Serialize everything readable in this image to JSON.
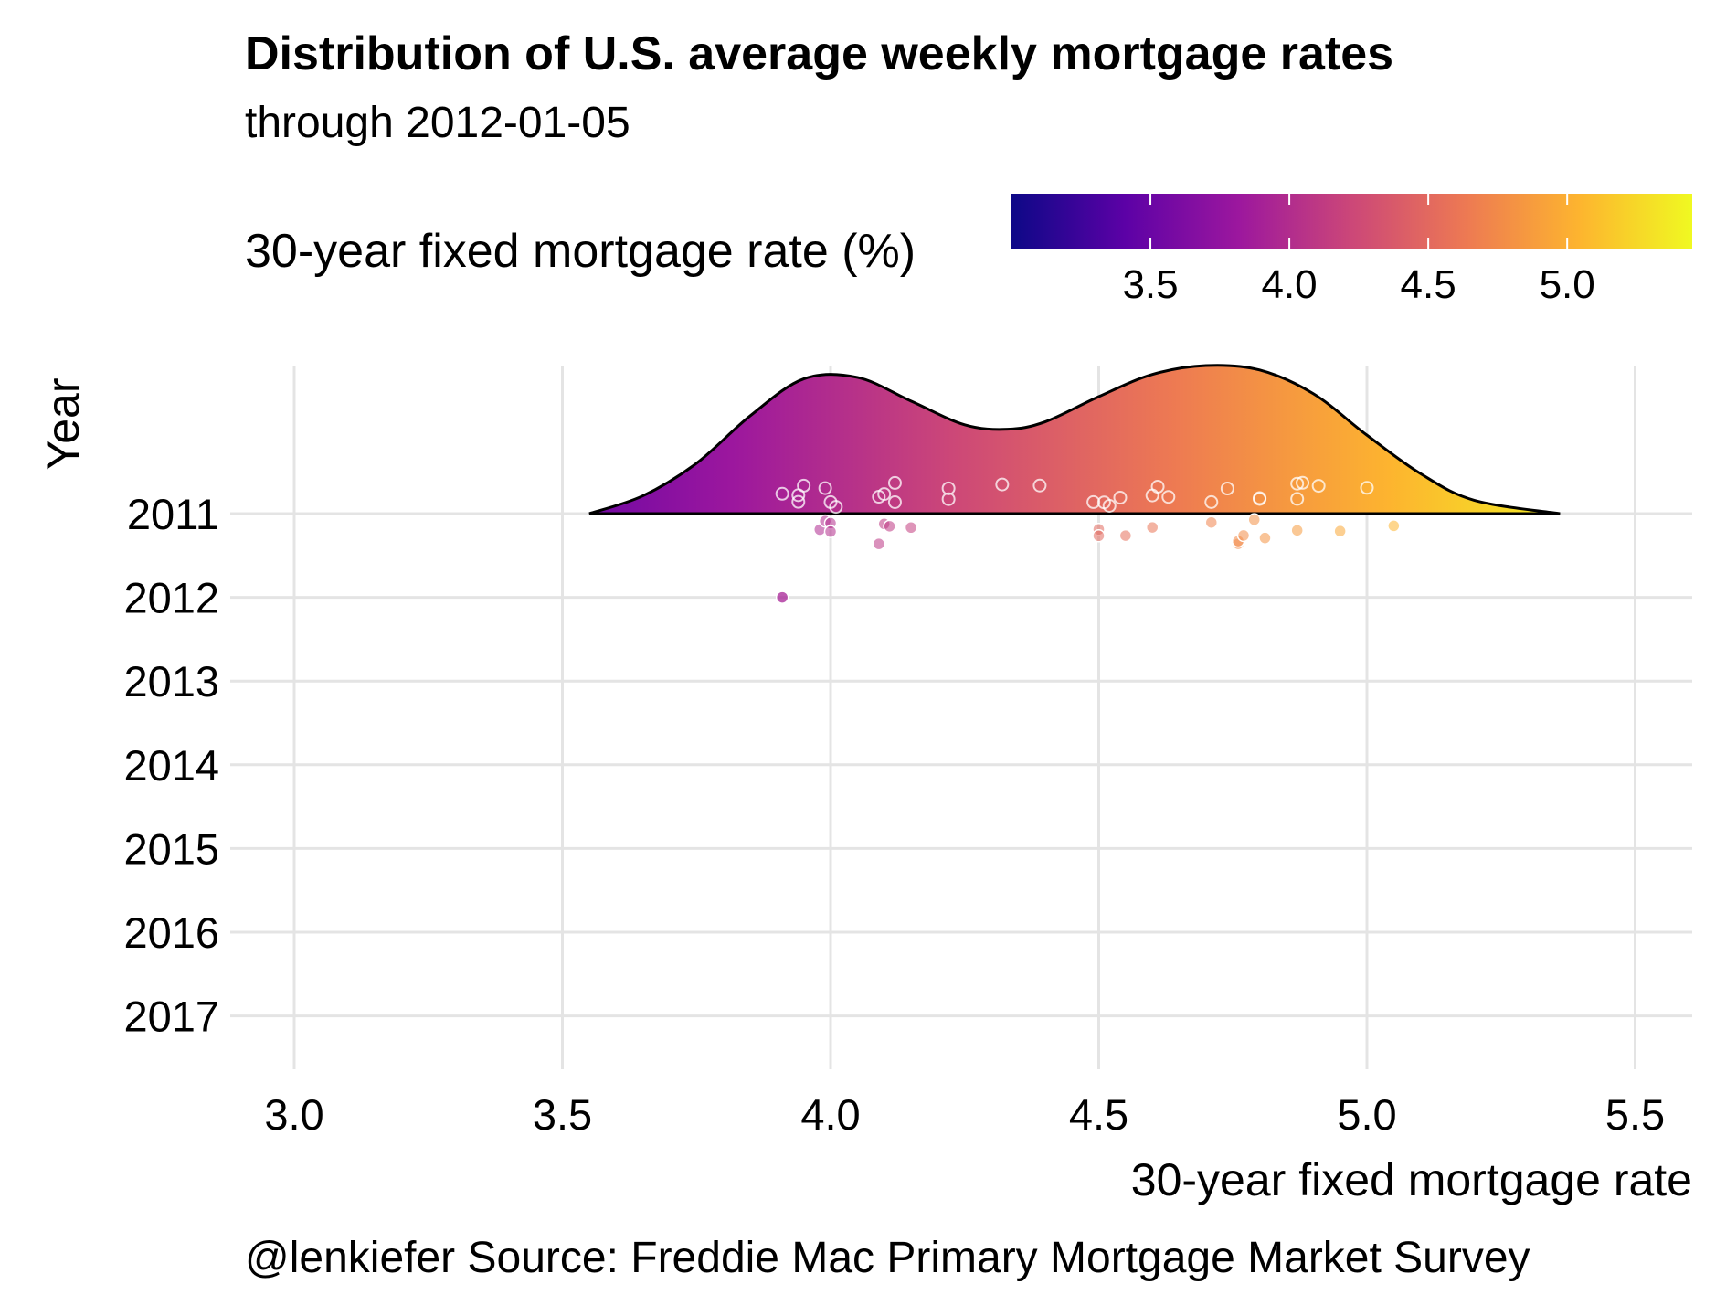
{
  "chart_data": {
    "type": "ridgeline",
    "title": "Distribution of U.S. average weekly mortgage rates",
    "subtitle": "through  2012-01-05",
    "xlabel": "30-year fixed mortgage rate",
    "ylabel": "Year",
    "caption": "@lenkiefer Source: Freddie Mac Primary Mortgage Market Survey",
    "legend": {
      "title": "30-year fixed mortgage rate (%)",
      "position": "top-right",
      "min": 3.0,
      "max": 5.45,
      "ticks": [
        3.5,
        4.0,
        4.5,
        5.0
      ],
      "tick_labels": [
        "3.5",
        "4.0",
        "4.5",
        "5.0"
      ],
      "palette": [
        "#0d0887",
        "#5c01a6",
        "#9c179e",
        "#cc4778",
        "#ed7953",
        "#fdb42f",
        "#f0f921"
      ]
    },
    "x_ticks": [
      3.0,
      3.5,
      4.0,
      4.5,
      5.0,
      5.5
    ],
    "x_tick_labels": [
      "3.0",
      "3.5",
      "4.0",
      "4.5",
      "5.0",
      "5.5"
    ],
    "xlim": [
      2.88,
      5.64
    ],
    "categories": [
      "2011",
      "2012",
      "2013",
      "2014",
      "2015",
      "2016",
      "2017"
    ],
    "grid": true,
    "density": {
      "year": "2011",
      "x": [
        3.55,
        3.65,
        3.75,
        3.85,
        3.95,
        4.05,
        4.15,
        4.25,
        4.33,
        4.4,
        4.5,
        4.6,
        4.7,
        4.8,
        4.9,
        5.0,
        5.1,
        5.2,
        5.36
      ],
      "y": [
        0.0,
        0.12,
        0.34,
        0.66,
        0.91,
        0.92,
        0.76,
        0.6,
        0.57,
        0.62,
        0.79,
        0.94,
        1.0,
        0.97,
        0.81,
        0.53,
        0.27,
        0.09,
        0.0
      ]
    },
    "points_2011": [
      3.91,
      3.94,
      3.94,
      3.95,
      3.98,
      3.99,
      3.99,
      4.0,
      4.0,
      4.0,
      4.01,
      4.09,
      4.09,
      4.1,
      4.1,
      4.11,
      4.12,
      4.12,
      4.15,
      4.22,
      4.22,
      4.32,
      4.39,
      4.49,
      4.5,
      4.5,
      4.51,
      4.52,
      4.54,
      4.55,
      4.6,
      4.6,
      4.61,
      4.63,
      4.71,
      4.71,
      4.74,
      4.76,
      4.76,
      4.77,
      4.79,
      4.8,
      4.8,
      4.81,
      4.87,
      4.87,
      4.87,
      4.88,
      4.91,
      4.95,
      5.0,
      5.05
    ],
    "points_2012": [
      3.91
    ]
  }
}
